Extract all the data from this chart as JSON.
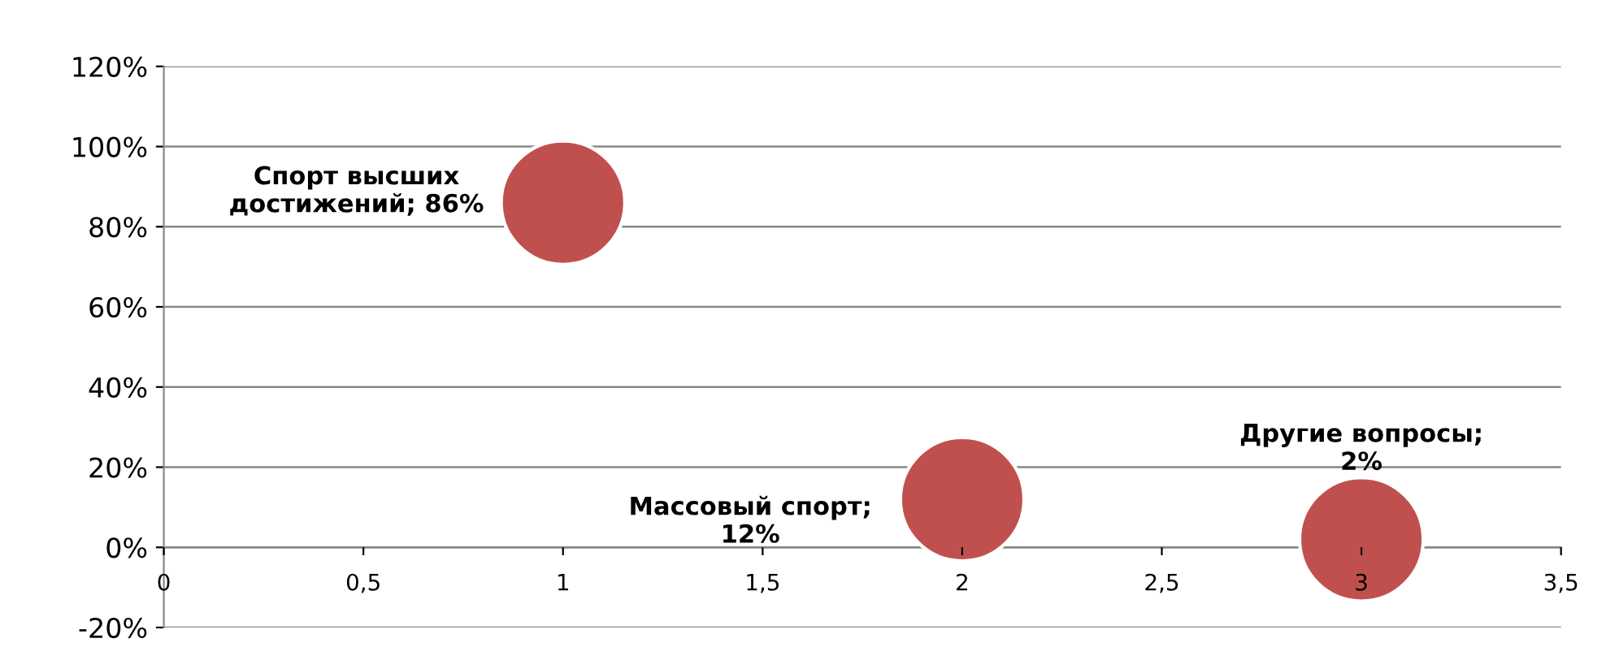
{
  "chart_data": {
    "type": "bubble",
    "x": [
      1,
      2,
      3
    ],
    "values": [
      86,
      12,
      2
    ],
    "sizes": [
      1,
      1,
      1
    ],
    "color": "#c0504d",
    "value_labels": [
      "Спорт высших достижений; 86%",
      "Массовый спорт; 12%",
      "Другие вопросы; 2%"
    ],
    "xlim": [
      0,
      3.5
    ],
    "xticks": [
      0,
      {
        "value": 0.5,
        "label": "0,5"
      },
      1,
      {
        "value": 1.5,
        "label": "1,5"
      },
      2,
      {
        "value": 2.5,
        "label": "2,5"
      },
      3,
      {
        "value": 3.5,
        "label": "3,5"
      }
    ],
    "ylim": [
      -20,
      120
    ],
    "yticks": [
      {
        "value": -20,
        "label": "-20%"
      },
      {
        "value": 0,
        "label": "0%"
      },
      {
        "value": 20,
        "label": "20%"
      },
      {
        "value": 40,
        "label": "40%"
      },
      {
        "value": 60,
        "label": "60%"
      },
      {
        "value": 80,
        "label": "80%"
      },
      {
        "value": 100,
        "label": "100%"
      },
      {
        "value": 120,
        "label": "120%"
      }
    ],
    "grid": "y",
    "legend": false
  }
}
